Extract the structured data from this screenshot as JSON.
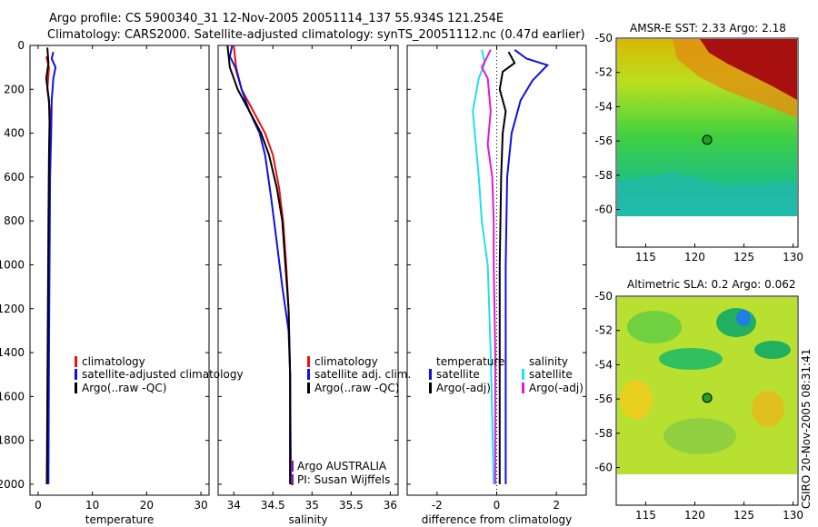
{
  "header": {
    "line1": "Argo profile: CS 5900340_31 12-Nov-2005 20051114_137 55.934S 121.254E",
    "line2": "Climatology: CARS2000. Satellite-adjusted climatology: synTS_20051112.nc (0.47d earlier)"
  },
  "footer_stamp": "CSIRO 20-Nov-2005 08:31:41",
  "colors": {
    "red": "#e8120e",
    "blue": "#1010e0",
    "black": "#000000",
    "cyan": "#22e0e8",
    "magenta": "#e018e0",
    "purple": "#7020a0"
  },
  "chart_data": [
    {
      "id": "temperature",
      "type": "line",
      "xlabel": "temperature",
      "ylabel": "",
      "xlim": [
        -1.5,
        31.5
      ],
      "ylim": [
        2050,
        0
      ],
      "xticks": [
        0,
        10,
        20,
        30
      ],
      "yticks": [
        0,
        200,
        400,
        600,
        800,
        1000,
        1200,
        1400,
        1600,
        1800,
        2000
      ],
      "legend": [
        "climatology",
        "satellite-adjusted climatology",
        "Argo(..raw -QC)"
      ],
      "series": [
        {
          "name": "climatology",
          "color": "red",
          "points": [
            [
              1.5,
              50
            ],
            [
              2.0,
              100
            ],
            [
              1.7,
              200
            ],
            [
              2.2,
              300
            ],
            [
              2.1,
              400
            ],
            [
              2.0,
              600
            ],
            [
              2.0,
              1000
            ],
            [
              1.9,
              1400
            ],
            [
              1.8,
              2000
            ]
          ]
        },
        {
          "name": "satellite-adjusted climatology",
          "color": "blue",
          "points": [
            [
              2.8,
              30
            ],
            [
              2.5,
              60
            ],
            [
              3.2,
              100
            ],
            [
              2.8,
              150
            ],
            [
              2.5,
              250
            ],
            [
              2.4,
              400
            ],
            [
              2.2,
              600
            ],
            [
              2.1,
              1000
            ],
            [
              2.0,
              1400
            ],
            [
              1.9,
              2000
            ]
          ]
        },
        {
          "name": "Argo(..raw -QC)",
          "color": "black",
          "points": [
            [
              1.7,
              10
            ],
            [
              1.9,
              80
            ],
            [
              1.5,
              150
            ],
            [
              2.0,
              250
            ],
            [
              2.1,
              350
            ],
            [
              2.0,
              500
            ],
            [
              1.9,
              800
            ],
            [
              1.8,
              1200
            ],
            [
              1.7,
              1600
            ],
            [
              1.6,
              2000
            ]
          ]
        }
      ]
    },
    {
      "id": "salinity",
      "type": "line",
      "xlabel": "salinity",
      "ylabel": "",
      "xlim": [
        33.8,
        36.1
      ],
      "ylim": [
        2050,
        0
      ],
      "xticks": [
        34,
        34.5,
        35,
        35.5,
        36
      ],
      "legend": [
        "climatology",
        "satellite adj. clim.",
        "Argo(..raw -QC)"
      ],
      "annotations": [
        "Argo AUSTRALIA",
        "PI: Susan Wijffels"
      ],
      "series": [
        {
          "name": "climatology",
          "color": "red",
          "points": [
            [
              34.0,
              0
            ],
            [
              34.03,
              100
            ],
            [
              34.1,
              200
            ],
            [
              34.25,
              300
            ],
            [
              34.4,
              400
            ],
            [
              34.5,
              500
            ],
            [
              34.58,
              650
            ],
            [
              34.63,
              800
            ],
            [
              34.67,
              1000
            ],
            [
              34.7,
              1200
            ],
            [
              34.72,
              1500
            ],
            [
              34.72,
              2000
            ]
          ]
        },
        {
          "name": "satellite adj. clim.",
          "color": "blue",
          "points": [
            [
              33.98,
              0
            ],
            [
              33.95,
              50
            ],
            [
              34.02,
              100
            ],
            [
              34.1,
              200
            ],
            [
              34.2,
              300
            ],
            [
              34.33,
              400
            ],
            [
              34.4,
              500
            ],
            [
              34.48,
              700
            ],
            [
              34.55,
              900
            ],
            [
              34.62,
              1100
            ],
            [
              34.7,
              1300
            ],
            [
              34.72,
              1500
            ],
            [
              34.73,
              2000
            ]
          ]
        },
        {
          "name": "Argo(..raw -QC)",
          "color": "black",
          "points": [
            [
              33.92,
              0
            ],
            [
              33.95,
              100
            ],
            [
              34.05,
              200
            ],
            [
              34.2,
              300
            ],
            [
              34.35,
              400
            ],
            [
              34.45,
              500
            ],
            [
              34.55,
              650
            ],
            [
              34.62,
              800
            ],
            [
              34.66,
              1000
            ],
            [
              34.7,
              1200
            ],
            [
              34.72,
              1500
            ],
            [
              34.72,
              2000
            ]
          ]
        }
      ]
    },
    {
      "id": "difference",
      "type": "line",
      "xlabel": "difference from climatology",
      "ylabel": "",
      "xlim": [
        -3,
        3
      ],
      "ylim": [
        2050,
        0
      ],
      "xticks": [
        -2,
        0,
        2
      ],
      "legend": [
        "temperature",
        "satellite",
        "Argo(-adj)",
        "salinity",
        "satellite",
        "Argo(-adj)"
      ],
      "series": [
        {
          "name": "satellite",
          "group": "temperature",
          "color": "blue",
          "points": [
            [
              0.6,
              20
            ],
            [
              1.0,
              60
            ],
            [
              1.7,
              90
            ],
            [
              1.2,
              160
            ],
            [
              0.8,
              250
            ],
            [
              0.5,
              400
            ],
            [
              0.35,
              600
            ],
            [
              0.3,
              1000
            ],
            [
              0.3,
              1400
            ],
            [
              0.3,
              2000
            ]
          ]
        },
        {
          "name": "Argo(-adj)",
          "group": "temperature",
          "color": "black",
          "points": [
            [
              0.4,
              30
            ],
            [
              0.6,
              80
            ],
            [
              0.2,
              120
            ],
            [
              0.1,
              200
            ],
            [
              0.3,
              300
            ],
            [
              0.2,
              400
            ],
            [
              0.15,
              600
            ],
            [
              0.1,
              1000
            ],
            [
              0.1,
              1400
            ],
            [
              0.1,
              2000
            ]
          ]
        },
        {
          "name": "satellite",
          "group": "salinity",
          "color": "cyan",
          "points": [
            [
              -0.5,
              20
            ],
            [
              -0.4,
              80
            ],
            [
              -0.6,
              150
            ],
            [
              -0.8,
              300
            ],
            [
              -0.7,
              450
            ],
            [
              -0.6,
              600
            ],
            [
              -0.5,
              800
            ],
            [
              -0.3,
              1000
            ],
            [
              -0.2,
              1400
            ],
            [
              -0.1,
              2000
            ]
          ]
        },
        {
          "name": "Argo(-adj)",
          "group": "salinity",
          "color": "magenta",
          "points": [
            [
              -0.2,
              20
            ],
            [
              -0.5,
              100
            ],
            [
              -0.3,
              150
            ],
            [
              -0.2,
              300
            ],
            [
              -0.3,
              450
            ],
            [
              -0.15,
              600
            ],
            [
              -0.1,
              800
            ],
            [
              -0.1,
              1000
            ],
            [
              -0.05,
              1400
            ],
            [
              -0.05,
              2000
            ]
          ]
        }
      ]
    },
    {
      "id": "sst_map",
      "type": "heatmap",
      "title": "AMSR-E SST: 2.33 Argo: 2.18",
      "xticks": [
        115,
        120,
        125,
        130
      ],
      "yticks": [
        -50,
        -52,
        -54,
        -56,
        -58,
        -60
      ],
      "xlim": [
        112,
        130.5
      ],
      "ylim": [
        -62.2,
        -50
      ],
      "marker": [
        121.254,
        -55.934
      ]
    },
    {
      "id": "sla_map",
      "type": "heatmap",
      "title": "Altimetric SLA: 0.2 Argo: 0.062",
      "xticks": [
        115,
        120,
        125,
        130
      ],
      "yticks": [
        -50,
        -52,
        -54,
        -56,
        -58,
        -60
      ],
      "xlim": [
        112,
        130.5
      ],
      "ylim": [
        -62.2,
        -50
      ],
      "marker": [
        121.254,
        -55.934
      ]
    }
  ]
}
